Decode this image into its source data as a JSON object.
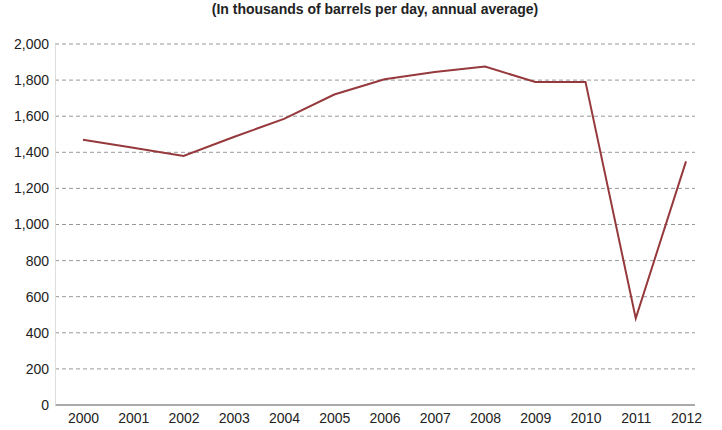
{
  "chart_data": {
    "type": "line",
    "title": "(In thousands of barrels per day, annual average)",
    "categories": [
      "2000",
      "2001",
      "2002",
      "2003",
      "2004",
      "2005",
      "2006",
      "2007",
      "2008",
      "2009",
      "2010",
      "2011",
      "2012"
    ],
    "values": [
      1470,
      1425,
      1380,
      1485,
      1585,
      1720,
      1805,
      1845,
      1875,
      1790,
      1790,
      480,
      1350
    ],
    "color": "#96393c",
    "ylim": [
      0,
      2000
    ],
    "yticks": [
      0,
      {
        "value": 200,
        "label": "200"
      },
      {
        "value": 400,
        "label": "400"
      },
      {
        "value": 600,
        "label": "600"
      },
      {
        "value": 800,
        "label": "800"
      },
      {
        "value": 1000,
        "label": "1,000"
      },
      {
        "value": 1200,
        "label": "1,200"
      },
      {
        "value": 1400,
        "label": "1,400"
      },
      {
        "value": 1600,
        "label": "1,600"
      },
      {
        "value": 1800,
        "label": "1,800"
      },
      {
        "value": 2000,
        "label": "2,000"
      }
    ],
    "grid": true
  }
}
